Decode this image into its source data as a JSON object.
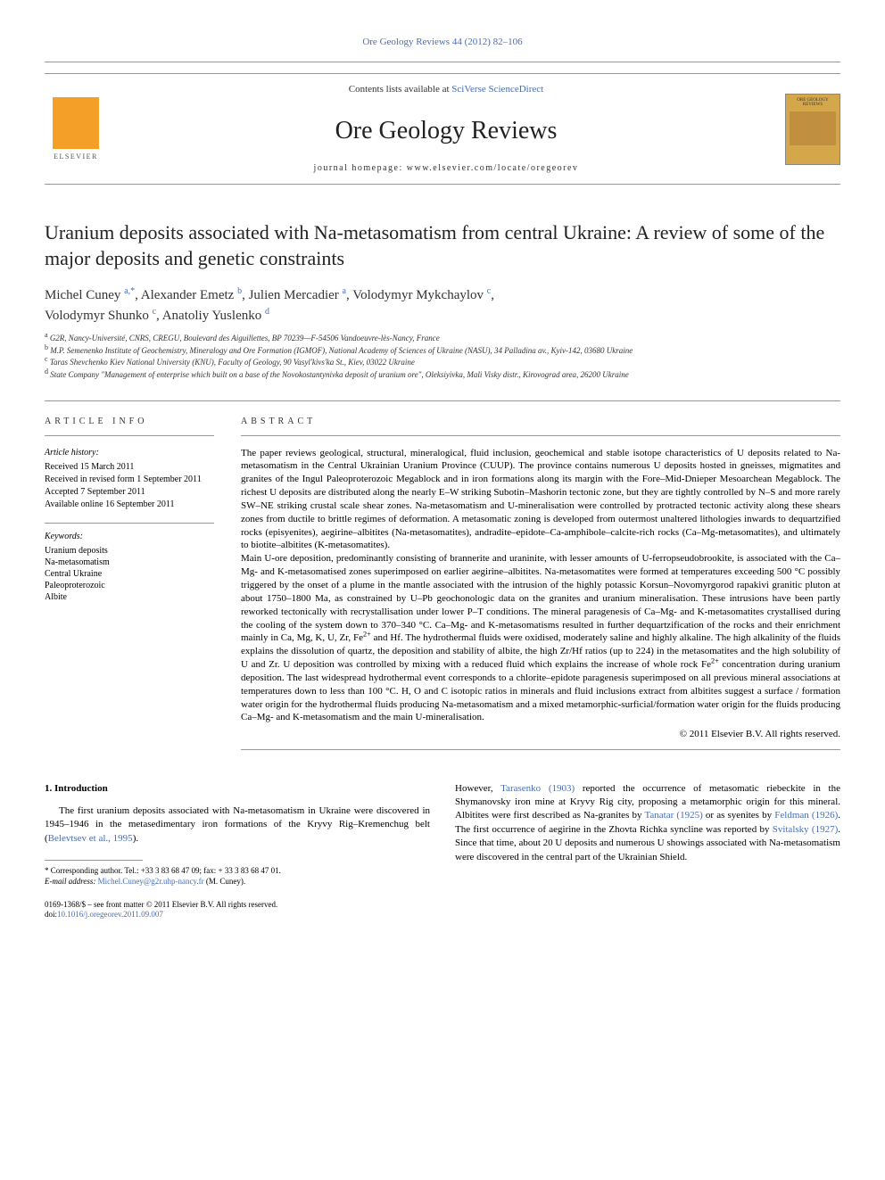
{
  "top_link": "Ore Geology Reviews 44 (2012) 82–106",
  "header": {
    "contents_text": "Contents lists available at ",
    "contents_link": "SciVerse ScienceDirect",
    "journal_name": "Ore Geology Reviews",
    "homepage_text": "journal homepage: www.elsevier.com/locate/oregeorev",
    "elsevier_label": "ELSEVIER",
    "cover_title": "ORE GEOLOGY REVIEWS"
  },
  "article": {
    "title": "Uranium deposits associated with Na-metasomatism from central Ukraine: A review of some of the major deposits and genetic constraints",
    "authors_line1": "Michel Cuney ",
    "authors_line1_sup1": "a,",
    "authors_line1_star": "*",
    "authors_line1_cont": ", Alexander Emetz ",
    "authors_line1_sup2": "b",
    "authors_line1_cont2": ", Julien Mercadier ",
    "authors_line1_sup3": "a",
    "authors_line1_cont3": ", Volodymyr Mykchaylov ",
    "authors_line1_sup4": "c",
    "authors_line1_cont4": ",",
    "authors_line2": "Volodymyr Shunko ",
    "authors_line2_sup1": "c",
    "authors_line2_cont": ", Anatoliy Yuslenko ",
    "authors_line2_sup2": "d"
  },
  "affiliations": {
    "a": "G2R, Nancy-Université, CNRS, CREGU, Boulevard des Aiguillettes, BP 70239—F-54506 Vandoeuvre-lès-Nancy, France",
    "b": "M.P. Semenenko Institute of Geochemistry, Mineralogy and Ore Formation (IGMOF), National Academy of Sciences of Ukraine (NASU), 34 Palladina av., Kyiv-142, 03680 Ukraine",
    "c": "Taras Shevchenko Kiev National University (KNU), Faculty of Geology, 90 Vasyl'kivs'ka St., Kiev, 03022 Ukraine",
    "d": "State Company \"Management of enterprise which built on a base of the Novokostantynivka deposit of uranium ore\", Oleksiyivka, Mali Visky distr., Kirovograd area, 26200 Ukraine"
  },
  "info": {
    "heading": "ARTICLE INFO",
    "history_label": "Article history:",
    "received": "Received 15 March 2011",
    "revised": "Received in revised form 1 September 2011",
    "accepted": "Accepted 7 September 2011",
    "online": "Available online 16 September 2011",
    "keywords_label": "Keywords:",
    "keywords": [
      "Uranium deposits",
      "Na-metasomatism",
      "Central Ukraine",
      "Paleoproterozoic",
      "Albite"
    ]
  },
  "abstract": {
    "heading": "ABSTRACT",
    "p1": "The paper reviews geological, structural, mineralogical, fluid inclusion, geochemical and stable isotope characteristics of U deposits related to Na-metasomatism in the Central Ukrainian Uranium Province (CUUP). The province contains numerous U deposits hosted in gneisses, migmatites and granites of the Ingul Paleoproterozoic Megablock and in iron formations along its margin with the Fore–Mid-Dnieper Mesoarchean Megablock. The richest U deposits are distributed along the nearly E–W striking Subotin–Mashorin tectonic zone, but they are tightly controlled by N–S and more rarely SW–NE striking crustal scale shear zones. Na-metasomatism and U-mineralisation were controlled by protracted tectonic activity along these shears zones from ductile to brittle regimes of deformation. A metasomatic zoning is developed from outermost unaltered lithologies inwards to dequartzified rocks (episyenites), aegirine–albitites (Na-metasomatites), andradite–epidote–Ca-amphibole–calcite-rich rocks (Ca–Mg-metasomatites), and ultimately to biotite–albitites (K-metasomatites).",
    "p2_a": "Main U-ore deposition, predominantly consisting of brannerite and uraninite, with lesser amounts of U-ferropseudobrookite, is associated with the Ca–Mg- and K-metasomatised zones superimposed on earlier aegirine–albitites. Na-metasomatites were formed at temperatures exceeding 500 °C possibly triggered by the onset of a plume in the mantle associated with the intrusion of the highly potassic Korsun–Novomyrgorod rapakivi granitic pluton at about 1750–1800 Ma, as constrained by U–Pb geochonologic data on the granites and uranium mineralisation. These intrusions have been partly reworked tectonically with recrystallisation under lower P–T conditions. The mineral paragenesis of Ca–Mg- and K-metasomatites crystallised during the cooling of the system down to 370–340 °C. Ca–Mg- and K-metasomatisms resulted in further dequartzification of the rocks and their enrichment mainly in Ca, Mg, K, U, Zr, Fe",
    "p2_sup1": "2+",
    "p2_b": " and Hf. The hydrothermal fluids were oxidised, moderately saline and highly alkaline. The high alkalinity of the fluids explains the dissolution of quartz, the deposition and stability of albite, the high Zr/Hf ratios (up to 224) in the metasomatites and the high solubility of U and Zr. U deposition was controlled by mixing with a reduced fluid which explains the increase of whole rock Fe",
    "p2_sup2": "2+",
    "p2_c": " concentration during uranium deposition. The last widespread hydrothermal event corresponds to a chlorite–epidote paragenesis superimposed on all previous mineral associations at temperatures down to less than 100 °C. H, O and C isotopic ratios in minerals and fluid inclusions extract from albitites suggest a surface / formation water origin for the hydrothermal fluids producing Na-metasomatism and a mixed metamorphic-surficial/formation water origin for the fluids producing Ca–Mg- and K-metasomatism and the main U-mineralisation.",
    "copyright": "© 2011 Elsevier B.V. All rights reserved."
  },
  "body": {
    "section_heading": "1. Introduction",
    "left_p1_a": "The first uranium deposits associated with Na-metasomatism in Ukraine were discovered in 1945–1946 in the metasedimentary iron formations of the Kryvy Rig–Kremenchug belt (",
    "left_p1_cite": "Belevtsev et al., 1995",
    "left_p1_b": ").",
    "right_p1_a": "However, ",
    "right_p1_cite1": "Tarasenko (1903)",
    "right_p1_b": " reported the occurrence of metasomatic riebeckite in the Shymanovsky iron mine at Kryvy Rig city, proposing a metamorphic origin for this mineral. Albitites were first described as Na-granites by ",
    "right_p1_cite2": "Tanatar (1925)",
    "right_p1_c": " or as syenites by ",
    "right_p1_cite3": "Feldman (1926)",
    "right_p1_d": ". The first occurrence of aegirine in the Zhovta Richka syncline was reported by ",
    "right_p1_cite4": "Svitalsky (1927)",
    "right_p1_e": ". Since that time, about 20 U deposits and numerous U showings associated with Na-metasomatism were discovered in the central part of the Ukrainian Shield."
  },
  "footnote": {
    "corr_a": "* Corresponding author. Tel.: +33 3 83 68 47 09; fax: + 33 3 83 68 47 01.",
    "email_label": "E-mail address: ",
    "email": "Michel.Cuney@g2r.uhp-nancy.fr",
    "email_suffix": " (M. Cuney)."
  },
  "bottom": {
    "issn": "0169-1368/$ – see front matter © 2011 Elsevier B.V. All rights reserved.",
    "doi_label": "doi:",
    "doi": "10.1016/j.oregeorev.2011.09.007"
  }
}
